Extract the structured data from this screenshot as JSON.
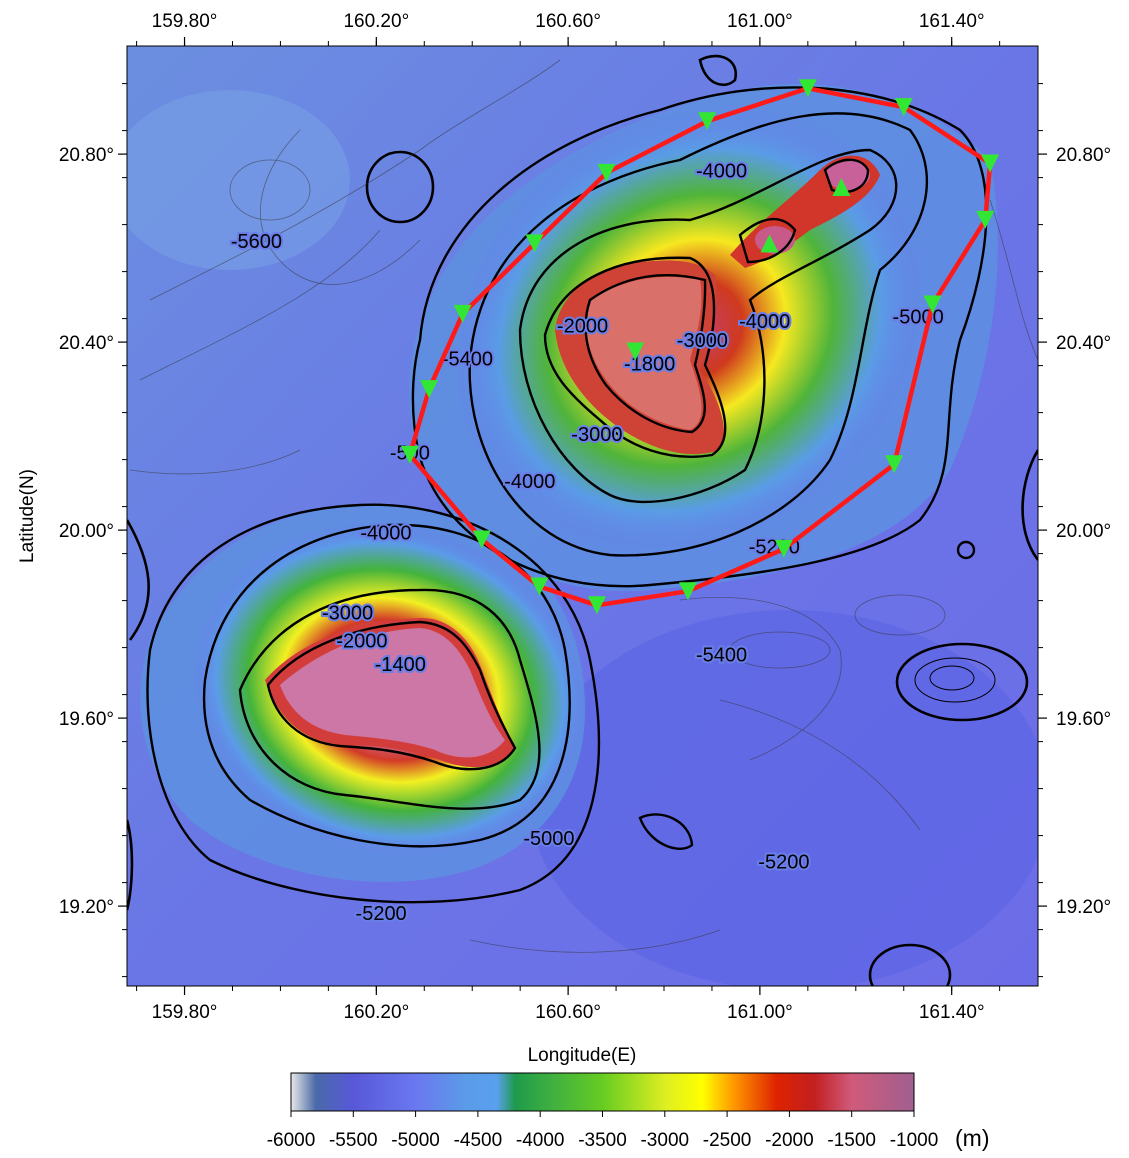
{
  "map": {
    "x_axis": {
      "title": "Longitude(E)",
      "ticks": [
        {
          "value": 159.8,
          "label": "159.80°"
        },
        {
          "value": 160.2,
          "label": "160.20°"
        },
        {
          "value": 160.6,
          "label": "160.60°"
        },
        {
          "value": 161.0,
          "label": "161.00°"
        },
        {
          "value": 161.4,
          "label": "161.40°"
        }
      ],
      "range": [
        159.68,
        161.58
      ]
    },
    "y_axis": {
      "title": "Latitude(N)",
      "ticks": [
        {
          "value": 20.8,
          "label": "20.80°"
        },
        {
          "value": 20.4,
          "label": "20.40°"
        },
        {
          "value": 20.0,
          "label": "20.00°"
        },
        {
          "value": 19.6,
          "label": "19.60°"
        },
        {
          "value": 19.2,
          "label": "19.20°"
        }
      ],
      "range": [
        19.03,
        21.03
      ]
    },
    "contour_labels": [
      {
        "text": "-5600",
        "lon": 159.95,
        "lat": 20.6
      },
      {
        "text": "-5400",
        "lon": 160.39,
        "lat": 20.35
      },
      {
        "text": "-500",
        "lon": 160.27,
        "lat": 20.15
      },
      {
        "text": "-4000",
        "lon": 160.22,
        "lat": 19.98
      },
      {
        "text": "-3000",
        "lon": 160.14,
        "lat": 19.81
      },
      {
        "text": "-2000",
        "lon": 160.17,
        "lat": 19.75
      },
      {
        "text": "-1400",
        "lon": 160.25,
        "lat": 19.7
      },
      {
        "text": "-2000",
        "lon": 160.63,
        "lat": 20.42
      },
      {
        "text": "-1800",
        "lon": 160.77,
        "lat": 20.34
      },
      {
        "text": "-3000",
        "lon": 160.66,
        "lat": 20.19
      },
      {
        "text": "-4000",
        "lon": 160.52,
        "lat": 20.09
      },
      {
        "text": "-3000",
        "lon": 160.88,
        "lat": 20.39
      },
      {
        "text": "-4000",
        "lon": 161.01,
        "lat": 20.43
      },
      {
        "text": "-4000",
        "lon": 160.92,
        "lat": 20.75
      },
      {
        "text": "-5000",
        "lon": 161.33,
        "lat": 20.44
      },
      {
        "text": "-5200",
        "lon": 161.03,
        "lat": 19.95
      },
      {
        "text": "-5400",
        "lon": 160.92,
        "lat": 19.72
      },
      {
        "text": "-5000",
        "lon": 160.56,
        "lat": 19.33
      },
      {
        "text": "-5200",
        "lon": 161.05,
        "lat": 19.28
      },
      {
        "text": "-5200",
        "lon": 160.21,
        "lat": 19.17
      }
    ],
    "survey_line_color": "#ff1a1a",
    "survey_polygon": [
      [
        161.1,
        20.94
      ],
      [
        161.3,
        20.9
      ],
      [
        161.48,
        20.78
      ],
      [
        161.47,
        20.66
      ],
      [
        161.36,
        20.48
      ],
      [
        161.28,
        20.14
      ],
      [
        161.05,
        19.96
      ],
      [
        160.85,
        19.87
      ],
      [
        160.66,
        19.84
      ],
      [
        160.54,
        19.88
      ],
      [
        160.42,
        19.98
      ],
      [
        160.27,
        20.16
      ],
      [
        160.31,
        20.3
      ],
      [
        160.38,
        20.46
      ],
      [
        160.53,
        20.61
      ],
      [
        160.68,
        20.76
      ],
      [
        160.89,
        20.87
      ],
      [
        161.1,
        20.94
      ]
    ],
    "marker_color": "#33e633",
    "stations_down": [
      [
        161.1,
        20.94
      ],
      [
        161.3,
        20.9
      ],
      [
        161.48,
        20.78
      ],
      [
        161.47,
        20.66
      ],
      [
        161.36,
        20.48
      ],
      [
        161.28,
        20.14
      ],
      [
        161.05,
        19.96
      ],
      [
        160.85,
        19.87
      ],
      [
        160.66,
        19.84
      ],
      [
        160.54,
        19.88
      ],
      [
        160.42,
        19.98
      ],
      [
        160.27,
        20.16
      ],
      [
        160.31,
        20.3
      ],
      [
        160.38,
        20.46
      ],
      [
        160.53,
        20.61
      ],
      [
        160.68,
        20.76
      ],
      [
        160.89,
        20.87
      ],
      [
        160.74,
        20.38
      ]
    ],
    "stations_up": [
      [
        161.17,
        20.73
      ],
      [
        161.02,
        20.61
      ]
    ]
  },
  "colorbar": {
    "unit": "(m)",
    "min": -6000,
    "max": -1000,
    "labels": [
      "-6000",
      "-5500",
      "-5000",
      "-4500",
      "-4000",
      "-3500",
      "-3000",
      "-2500",
      "-2000",
      "-1500",
      "-1000"
    ],
    "stops": [
      {
        "value": -6000,
        "color": "#e8e8e8"
      },
      {
        "value": -5800,
        "color": "#4a6aa8"
      },
      {
        "value": -5500,
        "color": "#5858d8"
      },
      {
        "value": -5000,
        "color": "#6a78f0"
      },
      {
        "value": -4600,
        "color": "#5b9be8"
      },
      {
        "value": -4350,
        "color": "#5aa0f0"
      },
      {
        "value": -4200,
        "color": "#1e9a4a"
      },
      {
        "value": -3900,
        "color": "#40b040"
      },
      {
        "value": -3500,
        "color": "#66cc22"
      },
      {
        "value": -3000,
        "color": "#ddee22"
      },
      {
        "value": -2700,
        "color": "#ffff00"
      },
      {
        "value": -2450,
        "color": "#ff9900"
      },
      {
        "value": -2100,
        "color": "#dd2200"
      },
      {
        "value": -1800,
        "color": "#c22020"
      },
      {
        "value": -1500,
        "color": "#d05a7a"
      },
      {
        "value": -1000,
        "color": "#a06090"
      }
    ]
  }
}
